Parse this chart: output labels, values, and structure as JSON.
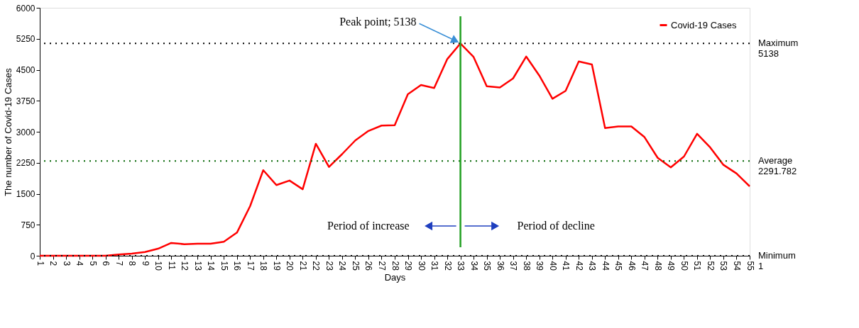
{
  "chart_data": {
    "type": "line",
    "xlabel": "Days",
    "ylabel": "The number of Covid-19 Cases",
    "x": [
      1,
      2,
      3,
      4,
      5,
      6,
      7,
      8,
      9,
      10,
      11,
      12,
      13,
      14,
      15,
      16,
      17,
      18,
      19,
      20,
      21,
      22,
      23,
      24,
      25,
      26,
      27,
      28,
      29,
      30,
      31,
      32,
      33,
      34,
      35,
      36,
      37,
      38,
      39,
      40,
      41,
      42,
      43,
      44,
      45,
      46,
      47,
      48,
      49,
      50,
      51,
      52,
      53,
      54,
      55
    ],
    "series": [
      {
        "name": "Covid-19 Cases",
        "color": "#ff0000",
        "values": [
          1,
          1,
          1,
          1,
          1,
          1,
          30,
          50,
          90,
          170,
          310,
          280,
          290,
          290,
          340,
          560,
          1200,
          2070,
          1710,
          1820,
          1610,
          2710,
          2150,
          2460,
          2790,
          3020,
          3150,
          3160,
          3910,
          4130,
          4060,
          4760,
          5138,
          4810,
          4100,
          4070,
          4290,
          4820,
          4360,
          3800,
          3990,
          4700,
          4630,
          3090,
          3130,
          3130,
          2870,
          2370,
          2140,
          2400,
          2950,
          2620,
          2200,
          1990,
          1680
        ]
      }
    ],
    "xlim": [
      1,
      55
    ],
    "xticks": [
      1,
      2,
      3,
      4,
      5,
      6,
      7,
      8,
      9,
      10,
      11,
      12,
      13,
      14,
      15,
      16,
      17,
      18,
      19,
      20,
      21,
      22,
      23,
      24,
      25,
      26,
      27,
      28,
      29,
      30,
      31,
      32,
      33,
      34,
      35,
      36,
      37,
      38,
      39,
      40,
      41,
      42,
      43,
      44,
      45,
      46,
      47,
      48,
      49,
      50,
      51,
      52,
      53,
      54,
      55
    ],
    "ylim": [
      0,
      6000
    ],
    "yticks": [
      0,
      750,
      1500,
      2250,
      3000,
      3750,
      4500,
      5250,
      6000
    ],
    "ref_lines": [
      {
        "axis": "y",
        "value": 5138,
        "label": "Maximum\n5138",
        "color": "#000000",
        "line_style": "dotted"
      },
      {
        "axis": "y",
        "value": 2291.782,
        "label": "Average\n2291.782",
        "color": "#006400",
        "line_style": "dotted"
      },
      {
        "axis": "y",
        "value": 1,
        "label": "Minimum\n1",
        "color": "#000000",
        "line_style": "dotted"
      },
      {
        "axis": "x",
        "value": 33,
        "color": "#22a022",
        "line_style": "solid"
      }
    ],
    "annotations": [
      {
        "text": "Peak point; 5138",
        "x": 33,
        "y": 5138
      },
      "Period of increase",
      "Period of decline"
    ],
    "legend": "top right",
    "grid": false,
    "line_style": "solid",
    "marker": "none"
  }
}
